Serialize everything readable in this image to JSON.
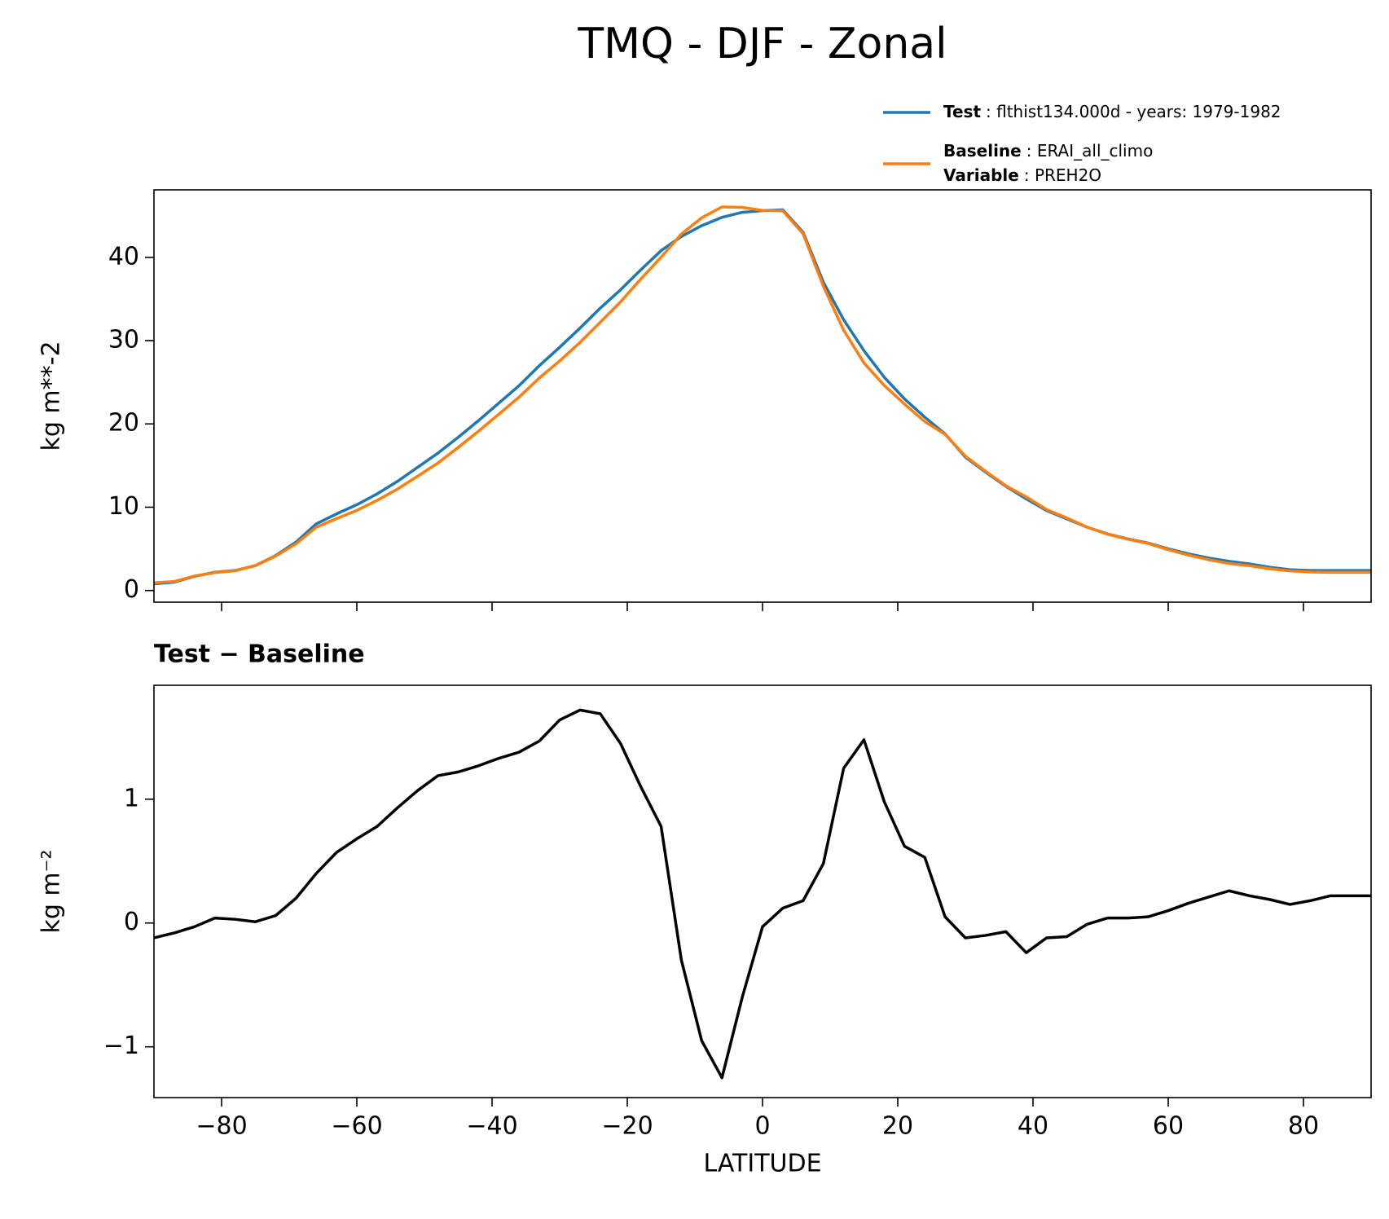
{
  "title": "TMQ - DJF - Zonal",
  "chart_data": [
    {
      "type": "line",
      "ylabel": "kg m**-2",
      "x": [
        -90,
        -87,
        -84,
        -81,
        -78,
        -75,
        -72,
        -69,
        -66,
        -63,
        -60,
        -57,
        -54,
        -51,
        -48,
        -45,
        -42,
        -39,
        -36,
        -33,
        -30,
        -27,
        -24,
        -21,
        -18,
        -15,
        -12,
        -9,
        -6,
        -3,
        0,
        3,
        6,
        9,
        12,
        15,
        18,
        21,
        24,
        27,
        30,
        33,
        36,
        39,
        42,
        45,
        48,
        51,
        54,
        57,
        60,
        63,
        66,
        69,
        72,
        75,
        78,
        81,
        84,
        87,
        90
      ],
      "series": [
        {
          "name": "Test",
          "label": ": flthist134.000d - years: 1979-1982",
          "color": "#1f77b4",
          "values": [
            0.8,
            1.0,
            1.7,
            2.2,
            2.4,
            3.0,
            4.2,
            5.8,
            8.0,
            9.2,
            10.3,
            11.6,
            13.1,
            14.8,
            16.5,
            18.4,
            20.4,
            22.5,
            24.6,
            27.0,
            29.2,
            31.5,
            33.9,
            36.1,
            38.5,
            40.8,
            42.5,
            43.8,
            44.8,
            45.4,
            45.6,
            45.7,
            43.0,
            37.0,
            32.5,
            28.8,
            25.6,
            23.0,
            20.8,
            18.8,
            16.0,
            14.2,
            12.5,
            11.0,
            9.6,
            8.6,
            7.6,
            6.8,
            6.2,
            5.7,
            5.0,
            4.4,
            3.9,
            3.5,
            3.2,
            2.8,
            2.5,
            2.4,
            2.4,
            2.4,
            2.4
          ]
        },
        {
          "name": "Baseline",
          "label": ": ERAI_all_climo",
          "extra_key": "Variable",
          "extra_label": ": PREH2O",
          "color": "#ff7f0e",
          "values": [
            0.92,
            1.08,
            1.73,
            2.16,
            2.37,
            2.99,
            4.14,
            5.6,
            7.6,
            8.63,
            9.62,
            10.82,
            12.17,
            13.73,
            15.31,
            17.18,
            19.13,
            21.17,
            23.22,
            25.53,
            27.56,
            29.78,
            32.21,
            34.65,
            37.4,
            40.02,
            42.8,
            44.75,
            46.05,
            46.0,
            45.63,
            45.58,
            42.82,
            36.52,
            31.25,
            27.32,
            24.62,
            22.38,
            20.27,
            18.75,
            16.12,
            14.3,
            12.57,
            11.24,
            9.72,
            8.71,
            7.61,
            6.76,
            6.16,
            5.65,
            4.9,
            4.24,
            3.69,
            3.24,
            2.98,
            2.61,
            2.35,
            2.22,
            2.18,
            2.18,
            2.18
          ]
        }
      ],
      "xlim": [
        -90,
        90
      ],
      "ylim": [
        -1.4,
        48.1
      ],
      "xticks": [
        -80,
        -60,
        -40,
        -20,
        0,
        20,
        40,
        60,
        80
      ],
      "show_xtick_labels": false,
      "yticks": [
        0,
        10,
        20,
        30,
        40
      ],
      "legend": "upper right"
    },
    {
      "type": "line",
      "title": "Test − Baseline",
      "xlabel": "LATITUDE",
      "ylabel": "kg m⁻²",
      "x": [
        -90,
        -87,
        -84,
        -81,
        -78,
        -75,
        -72,
        -69,
        -66,
        -63,
        -60,
        -57,
        -54,
        -51,
        -48,
        -45,
        -42,
        -39,
        -36,
        -33,
        -30,
        -27,
        -24,
        -21,
        -18,
        -15,
        -12,
        -9,
        -6,
        -3,
        0,
        3,
        6,
        9,
        12,
        15,
        18,
        21,
        24,
        27,
        30,
        33,
        36,
        39,
        42,
        45,
        48,
        51,
        54,
        57,
        60,
        63,
        66,
        69,
        72,
        75,
        78,
        81,
        84,
        87,
        90
      ],
      "series": [
        {
          "color": "#000000",
          "values": [
            -0.12,
            -0.08,
            -0.03,
            0.04,
            0.03,
            0.01,
            0.06,
            0.2,
            0.4,
            0.57,
            0.68,
            0.78,
            0.93,
            1.07,
            1.19,
            1.22,
            1.27,
            1.33,
            1.38,
            1.47,
            1.64,
            1.72,
            1.69,
            1.45,
            1.1,
            0.78,
            -0.3,
            -0.95,
            -1.25,
            -0.6,
            -0.03,
            0.12,
            0.18,
            0.48,
            1.25,
            1.48,
            0.98,
            0.62,
            0.53,
            0.05,
            -0.12,
            -0.1,
            -0.07,
            -0.24,
            -0.12,
            -0.11,
            -0.01,
            0.04,
            0.04,
            0.05,
            0.1,
            0.16,
            0.21,
            0.26,
            0.22,
            0.19,
            0.15,
            0.18,
            0.22,
            0.22,
            0.22
          ]
        }
      ],
      "xlim": [
        -90,
        90
      ],
      "ylim": [
        -1.41,
        1.92
      ],
      "xticks": [
        {
          "value": -80,
          "label": "−80"
        },
        {
          "value": -60,
          "label": "−60"
        },
        {
          "value": -40,
          "label": "−40"
        },
        {
          "value": -20,
          "label": "−20"
        },
        0,
        20,
        40,
        60,
        80
      ],
      "show_xtick_labels": true,
      "yticks": [
        {
          "value": -1,
          "label": "−1"
        },
        0,
        1
      ]
    }
  ]
}
